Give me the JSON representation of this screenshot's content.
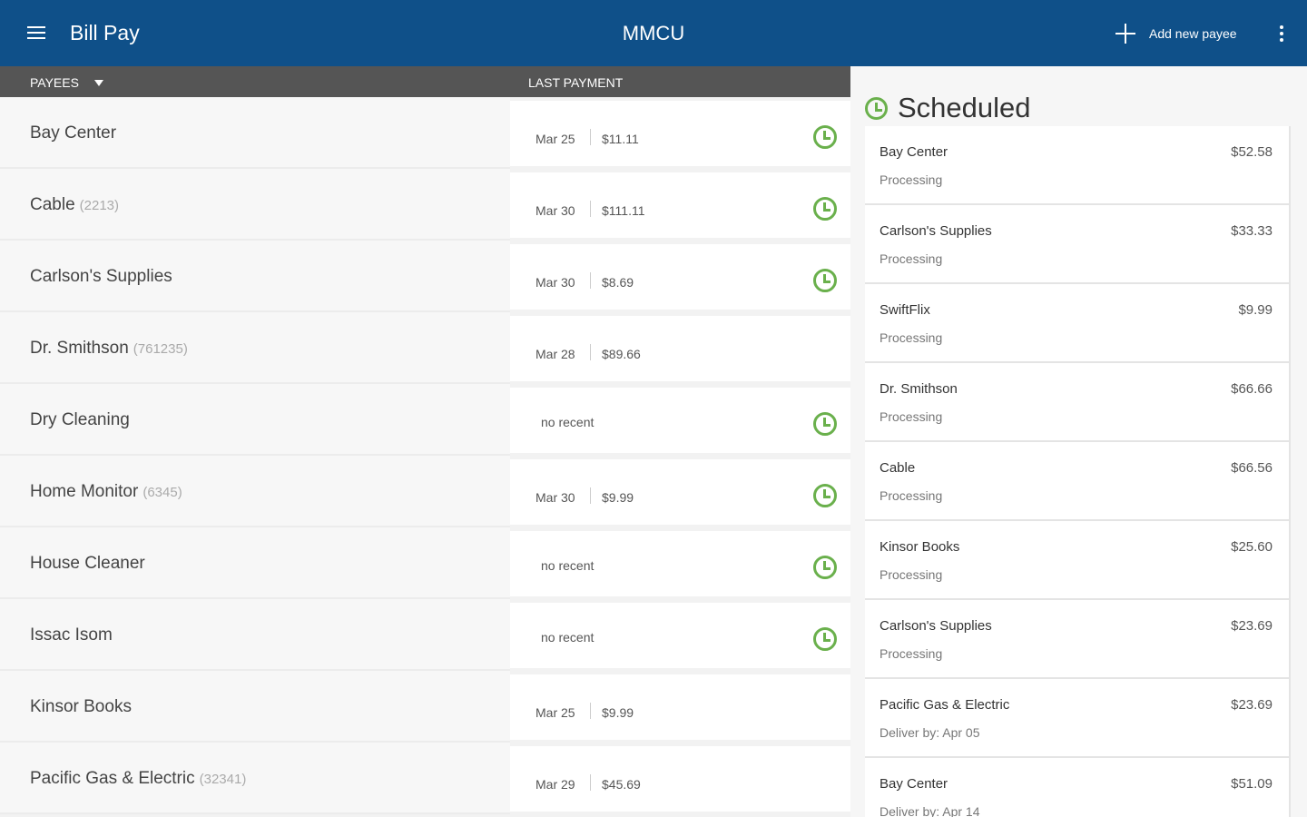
{
  "appbar": {
    "title": "Bill Pay",
    "brand": "MMCU",
    "add_payee": "Add new payee"
  },
  "columns": {
    "payees": "PAYEES",
    "last_payment": "LAST PAYMENT"
  },
  "payees": [
    {
      "name": "Bay Center",
      "account": "",
      "date": "Mar 25",
      "amount": "$11.11",
      "scheduled": true
    },
    {
      "name": "Cable",
      "account": "(2213)",
      "date": "Mar 30",
      "amount": "$111.11",
      "scheduled": true
    },
    {
      "name": "Carlson's Supplies",
      "account": "",
      "date": "Mar 30",
      "amount": "$8.69",
      "scheduled": true
    },
    {
      "name": "Dr. Smithson",
      "account": "(761235)",
      "date": "Mar 28",
      "amount": "$89.66",
      "scheduled": false
    },
    {
      "name": "Dry Cleaning",
      "account": "",
      "none": "no recent",
      "scheduled": true
    },
    {
      "name": "Home Monitor",
      "account": "(6345)",
      "date": "Mar 30",
      "amount": "$9.99",
      "scheduled": true
    },
    {
      "name": "House Cleaner",
      "account": "",
      "none": "no recent",
      "scheduled": true
    },
    {
      "name": "Issac Isom",
      "account": "",
      "none": "no recent",
      "scheduled": true
    },
    {
      "name": "Kinsor Books",
      "account": "",
      "date": "Mar 25",
      "amount": "$9.99",
      "scheduled": false
    },
    {
      "name": "Pacific Gas & Electric",
      "account": "(32341)",
      "date": "Mar 29",
      "amount": "$45.69",
      "scheduled": false
    }
  ],
  "scheduled": {
    "title": "Scheduled",
    "items": [
      {
        "name": "Bay Center",
        "amount": "$52.58",
        "status": "Processing"
      },
      {
        "name": "Carlson's Supplies",
        "amount": "$33.33",
        "status": "Processing"
      },
      {
        "name": "SwiftFlix",
        "amount": "$9.99",
        "status": "Processing"
      },
      {
        "name": "Dr. Smithson",
        "amount": "$66.66",
        "status": "Processing"
      },
      {
        "name": "Cable",
        "amount": "$66.56",
        "status": "Processing"
      },
      {
        "name": "Kinsor Books",
        "amount": "$25.60",
        "status": "Processing"
      },
      {
        "name": "Carlson's Supplies",
        "amount": "$23.69",
        "status": "Processing"
      },
      {
        "name": "Pacific Gas & Electric",
        "amount": "$23.69",
        "status": "Deliver by: Apr 05"
      },
      {
        "name": "Bay Center",
        "amount": "$51.09",
        "status": "Deliver by: Apr 14"
      }
    ]
  },
  "colors": {
    "appbar": "#0f5089",
    "header": "#555555",
    "accent_green": "#6ab04c"
  },
  "icons": [
    "menu-icon",
    "plus-icon",
    "overflow-menu-icon",
    "caret-down-icon",
    "clock-icon"
  ]
}
